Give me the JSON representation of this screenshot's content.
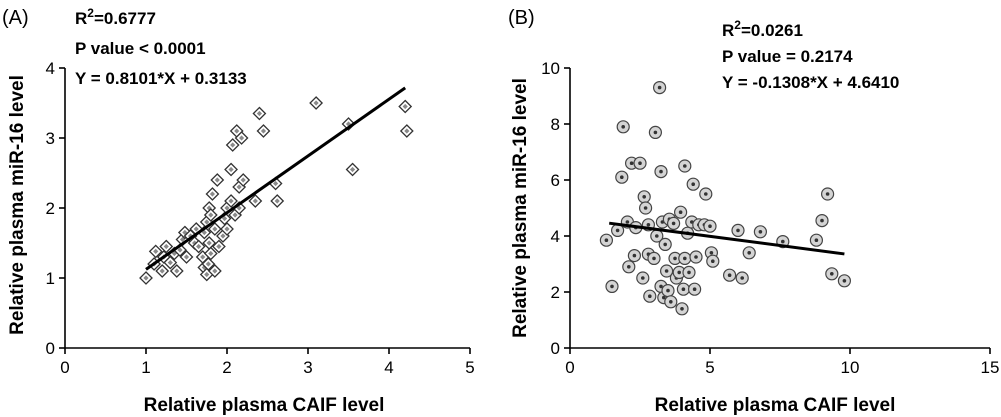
{
  "chart_data": [
    {
      "type": "scatter",
      "panel_label": "(A)",
      "xlabel": "Relative plasma CAIF level",
      "ylabel": "Relative plasma miR-16 level",
      "xlim": [
        0,
        5
      ],
      "ylim": [
        0,
        4
      ],
      "xticks": [
        "0",
        "1",
        "2",
        "3",
        "4",
        "5"
      ],
      "yticks": [
        "0",
        "1",
        "2",
        "3",
        "4"
      ],
      "stats": {
        "r2_prefix": "R",
        "r2_sup": "2",
        "r2_value": "=0.6777",
        "p_text": "P value < 0.0001",
        "eq_text": "Y = 0.8101*X + 0.3133"
      },
      "regression": {
        "slope": 0.8101,
        "intercept": 0.3133,
        "x_range": [
          1.0,
          4.2
        ]
      },
      "marker": "diamond",
      "grid": false,
      "points": [
        [
          1.0,
          1.0
        ],
        [
          1.1,
          1.2
        ],
        [
          1.12,
          1.38
        ],
        [
          1.2,
          1.1
        ],
        [
          1.22,
          1.3
        ],
        [
          1.25,
          1.45
        ],
        [
          1.3,
          1.22
        ],
        [
          1.35,
          1.35
        ],
        [
          1.38,
          1.1
        ],
        [
          1.42,
          1.4
        ],
        [
          1.45,
          1.55
        ],
        [
          1.48,
          1.65
        ],
        [
          1.5,
          1.3
        ],
        [
          1.55,
          1.6
        ],
        [
          1.6,
          1.5
        ],
        [
          1.62,
          1.7
        ],
        [
          1.65,
          1.45
        ],
        [
          1.7,
          1.3
        ],
        [
          1.72,
          1.15
        ],
        [
          1.72,
          1.65
        ],
        [
          1.75,
          1.8
        ],
        [
          1.75,
          1.05
        ],
        [
          1.77,
          1.2
        ],
        [
          1.78,
          1.5
        ],
        [
          1.78,
          2.0
        ],
        [
          1.8,
          1.35
        ],
        [
          1.8,
          1.9
        ],
        [
          1.82,
          2.2
        ],
        [
          1.85,
          1.7
        ],
        [
          1.85,
          1.1
        ],
        [
          1.88,
          2.4
        ],
        [
          1.9,
          1.45
        ],
        [
          1.95,
          1.6
        ],
        [
          1.97,
          1.85
        ],
        [
          2.0,
          1.7
        ],
        [
          2.0,
          2.0
        ],
        [
          2.05,
          2.1
        ],
        [
          2.05,
          2.55
        ],
        [
          2.07,
          2.9
        ],
        [
          2.1,
          1.9
        ],
        [
          2.12,
          3.1
        ],
        [
          2.15,
          2.0
        ],
        [
          2.15,
          2.3
        ],
        [
          2.18,
          3.0
        ],
        [
          2.2,
          2.4
        ],
        [
          2.35,
          2.1
        ],
        [
          2.4,
          3.35
        ],
        [
          2.45,
          3.1
        ],
        [
          2.6,
          2.35
        ],
        [
          2.62,
          2.1
        ],
        [
          3.1,
          3.5
        ],
        [
          3.5,
          3.2
        ],
        [
          3.55,
          2.55
        ],
        [
          4.2,
          3.45
        ],
        [
          4.22,
          3.1
        ]
      ]
    },
    {
      "type": "scatter",
      "panel_label": "(B)",
      "xlabel": "Relative plasma CAIF level",
      "ylabel": "Relative plasma miR-16 level",
      "xlim": [
        0,
        15
      ],
      "ylim": [
        0,
        10
      ],
      "xticks": [
        "0",
        "5",
        "10",
        "15"
      ],
      "yticks": [
        "0",
        "2",
        "4",
        "6",
        "8",
        "10"
      ],
      "stats": {
        "r2_prefix": "R",
        "r2_sup": "2",
        "r2_value": "=0.0261",
        "p_text": "P value = 0.2174",
        "eq_text": "Y = -0.1308*X + 4.6410"
      },
      "regression": {
        "slope": -0.1308,
        "intercept": 4.641,
        "x_range": [
          1.4,
          9.8
        ]
      },
      "marker": "circle",
      "grid": false,
      "points": [
        [
          1.3,
          3.85
        ],
        [
          1.5,
          2.2
        ],
        [
          1.7,
          4.2
        ],
        [
          1.85,
          6.1
        ],
        [
          1.9,
          7.9
        ],
        [
          2.05,
          4.5
        ],
        [
          2.1,
          2.9
        ],
        [
          2.2,
          6.6
        ],
        [
          2.3,
          3.3
        ],
        [
          2.35,
          4.3
        ],
        [
          2.5,
          6.6
        ],
        [
          2.6,
          2.5
        ],
        [
          2.65,
          5.4
        ],
        [
          2.7,
          5.0
        ],
        [
          2.8,
          4.4
        ],
        [
          2.8,
          3.35
        ],
        [
          2.85,
          1.85
        ],
        [
          3.0,
          3.2
        ],
        [
          3.05,
          7.7
        ],
        [
          3.1,
          4.0
        ],
        [
          3.2,
          9.3
        ],
        [
          3.25,
          6.3
        ],
        [
          3.25,
          2.2
        ],
        [
          3.3,
          4.5
        ],
        [
          3.35,
          1.8
        ],
        [
          3.4,
          3.7
        ],
        [
          3.45,
          2.75
        ],
        [
          3.5,
          2.05
        ],
        [
          3.55,
          4.6
        ],
        [
          3.6,
          1.65
        ],
        [
          3.7,
          4.45
        ],
        [
          3.75,
          3.2
        ],
        [
          3.8,
          2.5
        ],
        [
          3.9,
          2.7
        ],
        [
          3.95,
          4.85
        ],
        [
          4.0,
          1.4
        ],
        [
          4.05,
          2.1
        ],
        [
          4.1,
          3.2
        ],
        [
          4.1,
          6.5
        ],
        [
          4.2,
          4.1
        ],
        [
          4.25,
          2.7
        ],
        [
          4.35,
          4.5
        ],
        [
          4.4,
          5.85
        ],
        [
          4.45,
          2.1
        ],
        [
          4.5,
          3.25
        ],
        [
          4.6,
          4.4
        ],
        [
          4.8,
          4.4
        ],
        [
          4.85,
          5.5
        ],
        [
          5.0,
          4.35
        ],
        [
          5.05,
          3.4
        ],
        [
          5.1,
          3.1
        ],
        [
          5.7,
          2.6
        ],
        [
          6.0,
          4.2
        ],
        [
          6.15,
          2.5
        ],
        [
          6.4,
          3.4
        ],
        [
          6.8,
          4.15
        ],
        [
          7.6,
          3.8
        ],
        [
          8.8,
          3.85
        ],
        [
          9.0,
          4.55
        ],
        [
          9.2,
          5.5
        ],
        [
          9.35,
          2.65
        ],
        [
          9.8,
          2.4
        ]
      ]
    }
  ]
}
